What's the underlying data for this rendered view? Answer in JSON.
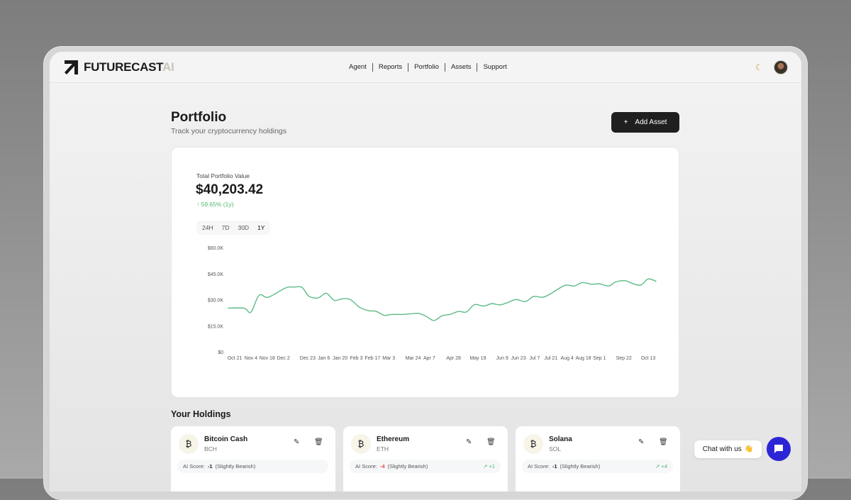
{
  "nav": {
    "brand": "FUTURECAST",
    "brand_suffix": "AI",
    "items": [
      "Agent",
      "Reports",
      "Portfolio",
      "Assets",
      "Support"
    ],
    "theme_icon": "moon-icon"
  },
  "page": {
    "title": "Portfolio",
    "subtitle": "Track your cryptocurrency holdings",
    "add_label": "Add Asset"
  },
  "summary": {
    "label": "Total Portfolio Value",
    "value": "$40,203.42",
    "change": "↑ 59.65% (1y)",
    "ranges": [
      "24H",
      "7D",
      "30D",
      "1Y"
    ],
    "active_range": "1Y"
  },
  "chart_data": {
    "type": "line",
    "color": "#5dbb85",
    "ylim": [
      0,
      60000
    ],
    "y_ticks": [
      "$0",
      "$15.0K",
      "$30.0K",
      "$45.0K",
      "$60.0K"
    ],
    "y_tick_values": [
      0,
      15000,
      30000,
      45000,
      60000
    ],
    "x_ticks": [
      [
        "2024-10-21",
        "Oct 21"
      ],
      [
        "2024-11-04",
        "Nov 4"
      ],
      [
        "2024-11-18",
        "Nov 18"
      ],
      [
        "2024-12-02",
        "Dec 2"
      ],
      [
        "2024-12-23",
        "Dec 23"
      ],
      [
        "2025-01-06",
        "Jan 6"
      ],
      [
        "2025-01-20",
        "Jan 20"
      ],
      [
        "2025-02-03",
        "Feb 3"
      ],
      [
        "2025-02-17",
        "Feb 17"
      ],
      [
        "2025-03-03",
        "Mar 3"
      ],
      [
        "2025-03-24",
        "Mar 24"
      ],
      [
        "2025-04-07",
        "Apr 7"
      ],
      [
        "2025-04-28",
        "Apr 28"
      ],
      [
        "2025-05-19",
        "May 19"
      ],
      [
        "2025-06-09",
        "Jun 9"
      ],
      [
        "2025-06-23",
        "Jun 23"
      ],
      [
        "2025-07-07",
        "Jul 7"
      ],
      [
        "2025-07-21",
        "Jul 21"
      ],
      [
        "2025-08-04",
        "Aug 4"
      ],
      [
        "2025-08-18",
        "Aug 18"
      ],
      [
        "2025-09-01",
        "Sep 1"
      ],
      [
        "2025-09-22",
        "Sep 22"
      ],
      [
        "2025-10-13",
        "Oct 13"
      ]
    ],
    "points": [
      [
        "2024-10-15",
        25100
      ],
      [
        "2024-10-29",
        25100
      ],
      [
        "2024-11-04",
        22800
      ],
      [
        "2024-11-11",
        32500
      ],
      [
        "2024-11-19",
        31400
      ],
      [
        "2024-12-04",
        36800
      ],
      [
        "2024-12-11",
        37200
      ],
      [
        "2024-12-18",
        37100
      ],
      [
        "2024-12-24",
        32000
      ],
      [
        "2025-01-01",
        31000
      ],
      [
        "2025-01-08",
        33700
      ],
      [
        "2025-01-15",
        29600
      ],
      [
        "2025-01-22",
        30500
      ],
      [
        "2025-01-29",
        30000
      ],
      [
        "2025-02-06",
        25500
      ],
      [
        "2025-02-14",
        23600
      ],
      [
        "2025-02-20",
        23300
      ],
      [
        "2025-02-27",
        21000
      ],
      [
        "2025-03-06",
        21500
      ],
      [
        "2025-03-16",
        21500
      ],
      [
        "2025-03-28",
        22100
      ],
      [
        "2025-04-04",
        20500
      ],
      [
        "2025-04-11",
        18000
      ],
      [
        "2025-04-18",
        20700
      ],
      [
        "2025-04-25",
        21500
      ],
      [
        "2025-05-02",
        23200
      ],
      [
        "2025-05-09",
        22900
      ],
      [
        "2025-05-16",
        27100
      ],
      [
        "2025-05-24",
        26300
      ],
      [
        "2025-05-31",
        27700
      ],
      [
        "2025-06-07",
        27000
      ],
      [
        "2025-06-14",
        28400
      ],
      [
        "2025-06-21",
        30100
      ],
      [
        "2025-06-29",
        28900
      ],
      [
        "2025-07-06",
        31800
      ],
      [
        "2025-07-14",
        31400
      ],
      [
        "2025-07-20",
        33100
      ],
      [
        "2025-08-02",
        38200
      ],
      [
        "2025-08-10",
        37800
      ],
      [
        "2025-08-17",
        39800
      ],
      [
        "2025-08-25",
        38900
      ],
      [
        "2025-09-01",
        39100
      ],
      [
        "2025-09-09",
        37900
      ],
      [
        "2025-09-15",
        40200
      ],
      [
        "2025-09-23",
        40900
      ],
      [
        "2025-10-01",
        38900
      ],
      [
        "2025-10-07",
        38500
      ],
      [
        "2025-10-13",
        41900
      ],
      [
        "2025-10-20",
        40500
      ]
    ]
  },
  "holdings": {
    "title": "Your Holdings",
    "score_label": "AI Score:",
    "items": [
      {
        "name": "Bitcoin Cash",
        "symbol": "BCH",
        "icon": "₿",
        "score": "-1",
        "sentiment": "(Slightly Bearish)",
        "trend": "",
        "negative": false
      },
      {
        "name": "Ethereum",
        "symbol": "ETH",
        "icon": "₿",
        "score": "-4",
        "sentiment": "(Slightly Bearish)",
        "trend": "↗ +1",
        "negative": true
      },
      {
        "name": "Solana",
        "symbol": "SOL",
        "icon": "₿",
        "score": "-1",
        "sentiment": "(Slightly Bearish)",
        "trend": "↗ +4",
        "negative": false
      }
    ]
  },
  "chat": {
    "label": "Chat with us",
    "emoji": "👋"
  }
}
